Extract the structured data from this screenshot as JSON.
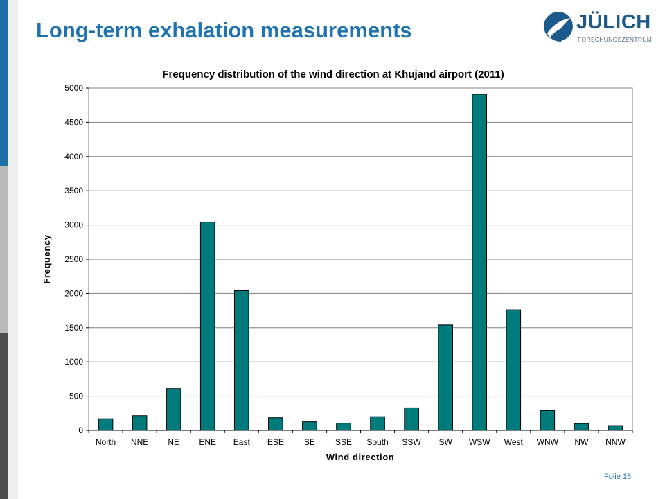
{
  "slide": {
    "title": "Long-term exhalation measurements",
    "footer": "Folie 15"
  },
  "logo": {
    "name": "JÜLICH",
    "subtitle": "FORSCHUNGSZENTRUM"
  },
  "colors": {
    "title": "#1f73b0",
    "bar_fill": "#007b7b",
    "bar_stroke": "#000000",
    "sidebar": [
      "#1c6fa6",
      "#b9b9b9",
      "#4d4d4d"
    ]
  },
  "chart_data": {
    "type": "bar",
    "title": "Frequency distribution of the wind direction at Khujand airport (2011)",
    "xlabel": "Wind direction",
    "ylabel": "Frequency",
    "ylim": [
      0,
      5000
    ],
    "yticks": [
      0,
      500,
      1000,
      1500,
      2000,
      2500,
      3000,
      3500,
      4000,
      4500,
      5000
    ],
    "grid": true,
    "legend": false,
    "categories": [
      "North",
      "NNE",
      "NE",
      "ENE",
      "East",
      "ESE",
      "SE",
      "SSE",
      "South",
      "SSW",
      "SW",
      "WSW",
      "West",
      "WNW",
      "NW",
      "NNW"
    ],
    "values": [
      170,
      215,
      610,
      3040,
      2040,
      185,
      125,
      105,
      200,
      330,
      1540,
      4910,
      1760,
      290,
      100,
      70
    ]
  }
}
